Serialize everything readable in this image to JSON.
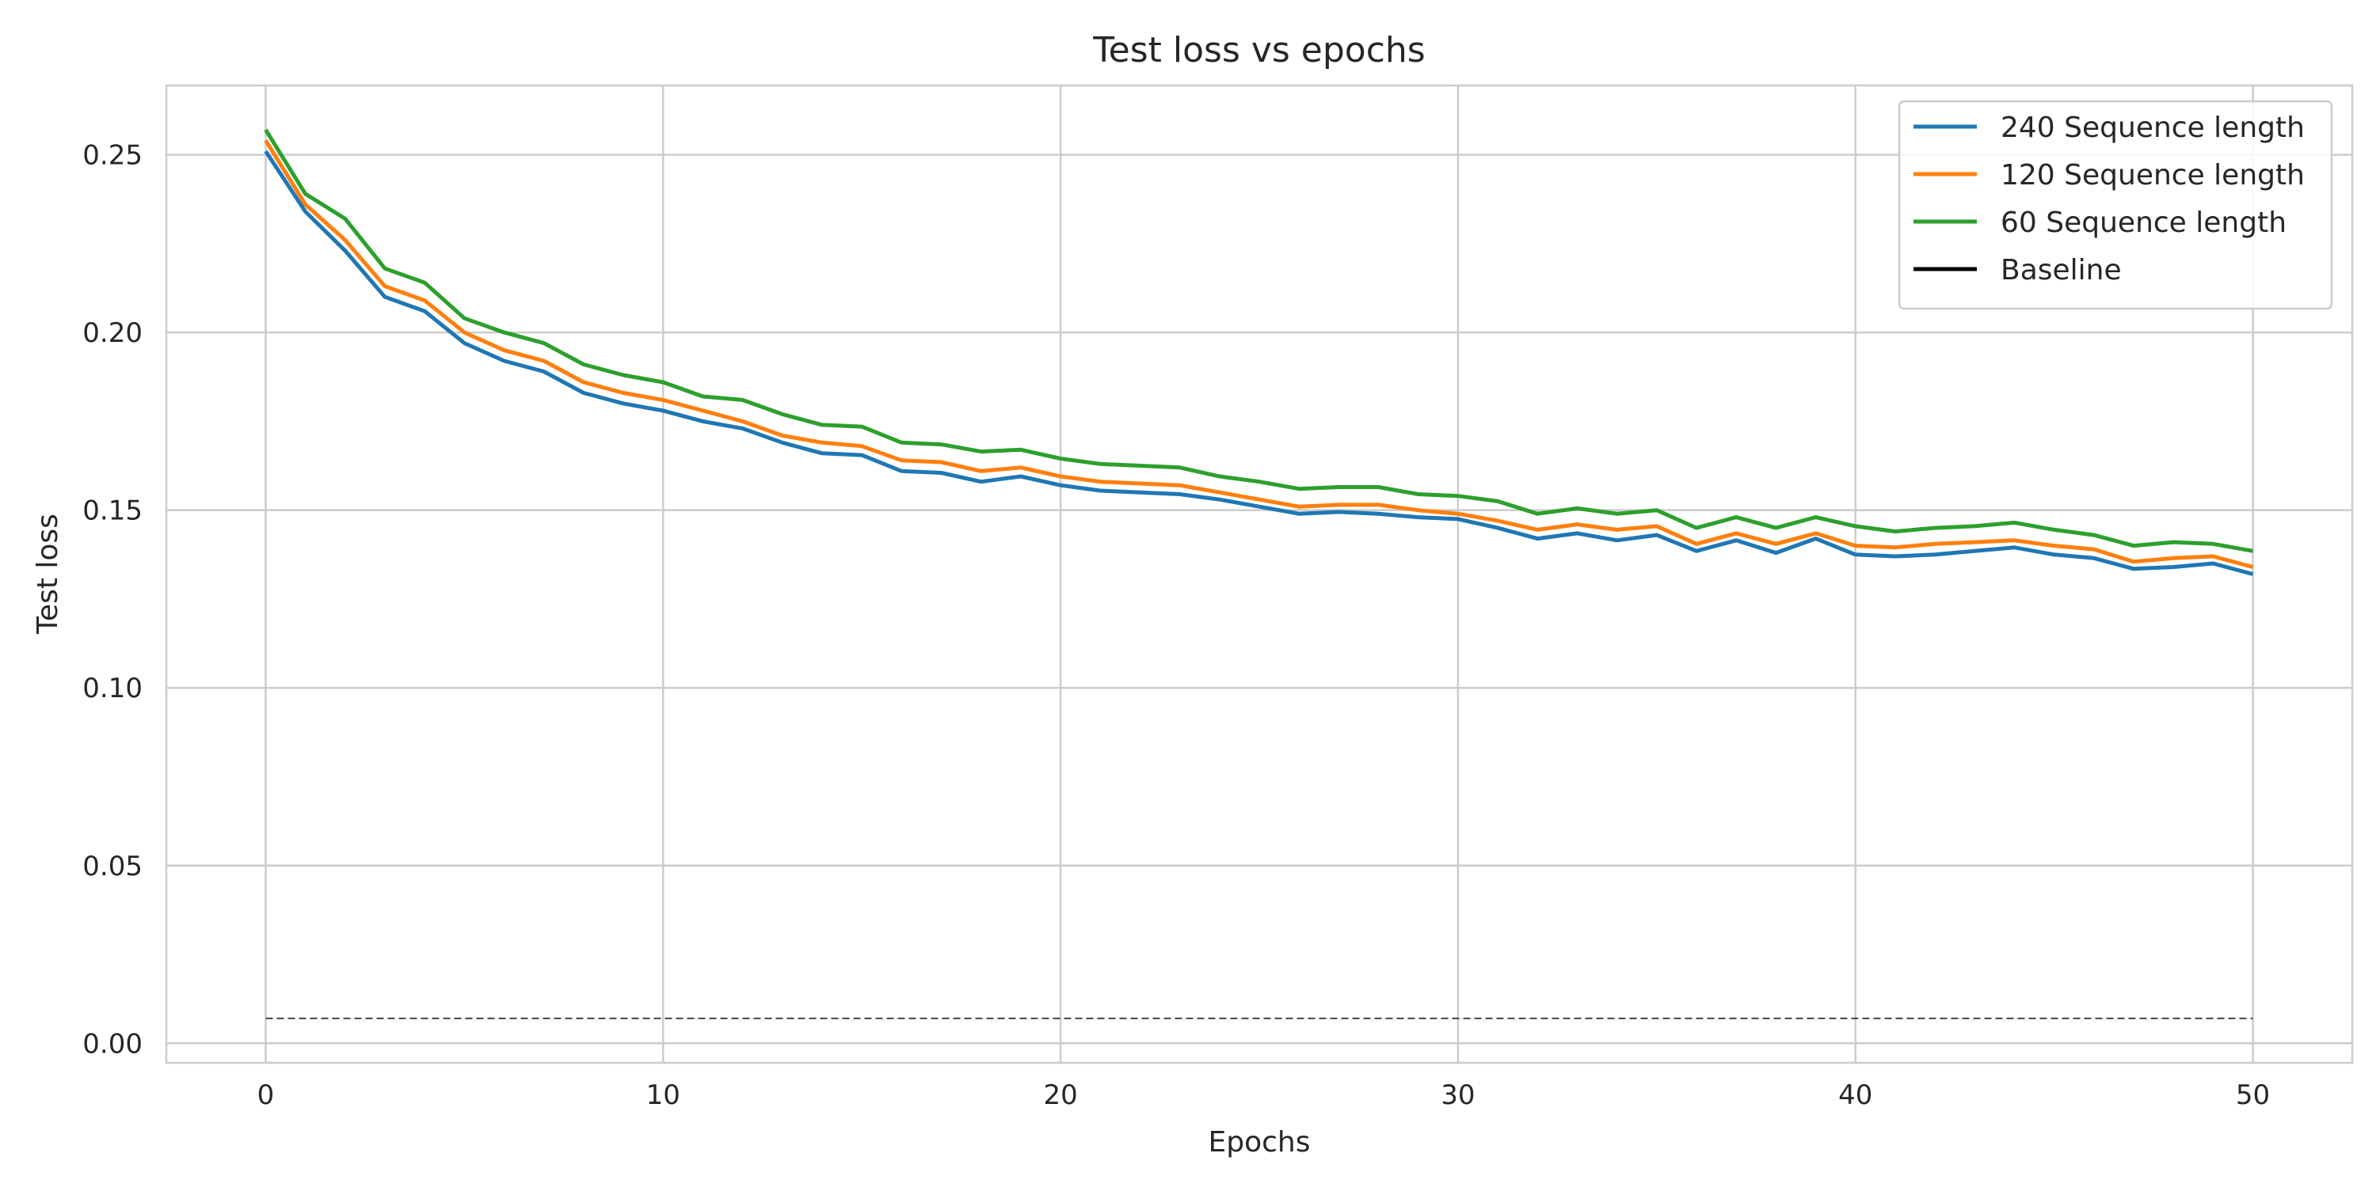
{
  "chart_data": {
    "type": "line",
    "title": "Test loss vs epochs",
    "xlabel": "Epochs",
    "ylabel": "Test loss",
    "xlim": [
      -2.5,
      52.5
    ],
    "ylim": [
      -0.0055,
      0.2695
    ],
    "x_ticks": [
      0,
      10,
      20,
      30,
      40,
      50
    ],
    "x_tick_labels": [
      "0",
      "10",
      "20",
      "30",
      "40",
      "50"
    ],
    "y_ticks": [
      0.0,
      0.05,
      0.1,
      0.15,
      0.2,
      0.25
    ],
    "y_tick_labels": [
      "0.00",
      "0.05",
      "0.10",
      "0.15",
      "0.20",
      "0.25"
    ],
    "grid": true,
    "legend_position": "top-right",
    "x": [
      0,
      1,
      2,
      3,
      4,
      5,
      6,
      7,
      8,
      9,
      10,
      11,
      12,
      13,
      14,
      15,
      16,
      17,
      18,
      19,
      20,
      21,
      22,
      23,
      24,
      25,
      26,
      27,
      28,
      29,
      30,
      31,
      32,
      33,
      34,
      35,
      36,
      37,
      38,
      39,
      40,
      41,
      42,
      43,
      44,
      45,
      46,
      47,
      48,
      49,
      50
    ],
    "series": [
      {
        "name": "240 Sequence length",
        "color": "#1f77b4",
        "style": "solid",
        "values": [
          0.251,
          0.234,
          0.223,
          0.21,
          0.206,
          0.197,
          0.192,
          0.189,
          0.183,
          0.18,
          0.178,
          0.175,
          0.173,
          0.169,
          0.166,
          0.1655,
          0.161,
          0.1605,
          0.158,
          0.1595,
          0.157,
          0.1555,
          0.155,
          0.1545,
          0.153,
          0.151,
          0.149,
          0.1495,
          0.149,
          0.148,
          0.1475,
          0.145,
          0.142,
          0.1435,
          0.1415,
          0.143,
          0.1385,
          0.1415,
          0.138,
          0.142,
          0.1375,
          0.137,
          0.1375,
          0.1385,
          0.1395,
          0.1375,
          0.1365,
          0.1335,
          0.134,
          0.135,
          0.132
        ]
      },
      {
        "name": "120 Sequence length",
        "color": "#ff7f0e",
        "style": "solid",
        "values": [
          0.254,
          0.236,
          0.226,
          0.213,
          0.209,
          0.2,
          0.195,
          0.192,
          0.186,
          0.183,
          0.181,
          0.178,
          0.175,
          0.171,
          0.169,
          0.168,
          0.164,
          0.1635,
          0.161,
          0.162,
          0.1595,
          0.158,
          0.1575,
          0.157,
          0.155,
          0.153,
          0.151,
          0.1515,
          0.1515,
          0.15,
          0.149,
          0.147,
          0.1445,
          0.146,
          0.1445,
          0.1455,
          0.1405,
          0.1435,
          0.1405,
          0.1435,
          0.14,
          0.1395,
          0.1405,
          0.141,
          0.1415,
          0.14,
          0.139,
          0.1355,
          0.1365,
          0.137,
          0.134
        ]
      },
      {
        "name": "60 Sequence length",
        "color": "#2ca02c",
        "style": "solid",
        "values": [
          0.257,
          0.239,
          0.232,
          0.218,
          0.214,
          0.204,
          0.2,
          0.197,
          0.191,
          0.188,
          0.186,
          0.182,
          0.181,
          0.177,
          0.174,
          0.1735,
          0.169,
          0.1685,
          0.1665,
          0.167,
          0.1645,
          0.163,
          0.1625,
          0.162,
          0.1595,
          0.158,
          0.156,
          0.1565,
          0.1565,
          0.1545,
          0.154,
          0.1525,
          0.149,
          0.1505,
          0.149,
          0.15,
          0.145,
          0.148,
          0.145,
          0.148,
          0.1455,
          0.144,
          0.145,
          0.1455,
          0.1465,
          0.1445,
          0.143,
          0.14,
          0.141,
          0.1405,
          0.1385
        ]
      },
      {
        "name": "Baseline",
        "color": "#000000",
        "style": "solid",
        "values": null
      },
      {
        "name": "",
        "color": "#444444",
        "style": "dashed",
        "values": [
          0.007,
          0.007,
          0.007,
          0.007,
          0.007,
          0.007,
          0.007,
          0.007,
          0.007,
          0.007,
          0.007,
          0.007,
          0.007,
          0.007,
          0.007,
          0.007,
          0.007,
          0.007,
          0.007,
          0.007,
          0.007,
          0.007,
          0.007,
          0.007,
          0.007,
          0.007,
          0.007,
          0.007,
          0.007,
          0.007,
          0.007,
          0.007,
          0.007,
          0.007,
          0.007,
          0.007,
          0.007,
          0.007,
          0.007,
          0.007,
          0.007,
          0.007,
          0.007,
          0.007,
          0.007,
          0.007,
          0.007,
          0.007,
          0.007,
          0.007,
          0.007
        ]
      }
    ]
  }
}
